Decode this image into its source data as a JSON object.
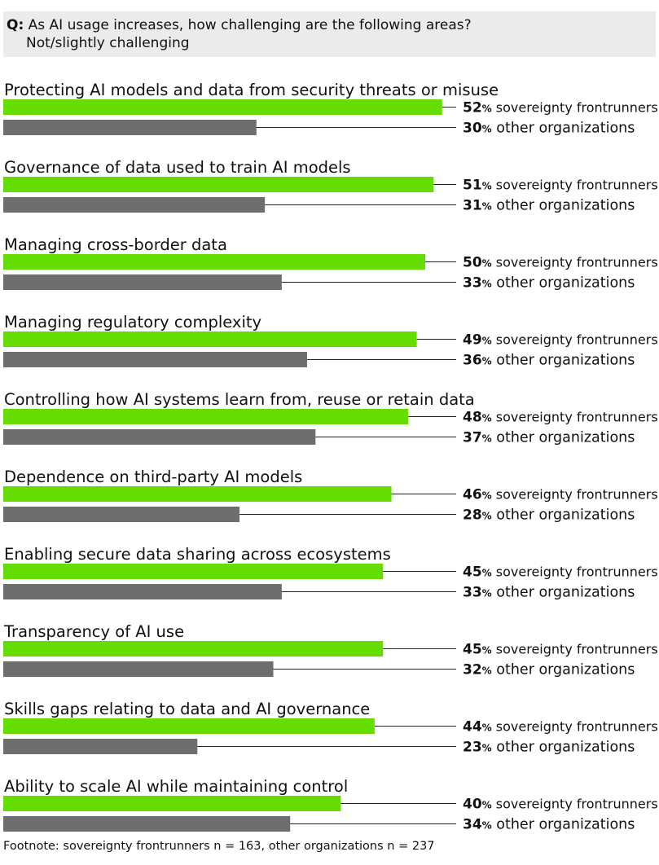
{
  "question": {
    "prefix": "Q:",
    "line1": "As AI usage increases, how challenging are the following areas?",
    "line2": "Not/slightly challenging"
  },
  "colors": {
    "sovereignty": "#66dd00",
    "other": "#6e6e6e",
    "leader": "#222222",
    "question_bg": "#ebebeb"
  },
  "chart_data": {
    "type": "bar",
    "orientation": "horizontal",
    "value_suffix": "%",
    "categories": [
      "Protecting AI models and data from security threats or misuse",
      "Governance of data used to train AI models",
      "Managing cross-border data",
      "Managing regulatory complexity",
      "Controlling how AI systems learn from, reuse or retain data",
      "Dependence on third-party AI models",
      "Enabling secure data sharing across ecosystems",
      "Transparency of AI use",
      "Skills gaps relating to data and AI governance",
      "Ability to scale AI while maintaining control"
    ],
    "series": [
      {
        "name": "sovereignty frontrunners",
        "color": "#66dd00",
        "values": [
          52,
          51,
          50,
          49,
          48,
          46,
          45,
          45,
          44,
          40
        ]
      },
      {
        "name": "other organizations",
        "color": "#6e6e6e",
        "values": [
          30,
          31,
          33,
          36,
          37,
          28,
          33,
          32,
          23,
          34
        ]
      }
    ]
  },
  "footnote": "Footnote: sovereignty frontrunners n = 163, other organizations n = 237"
}
